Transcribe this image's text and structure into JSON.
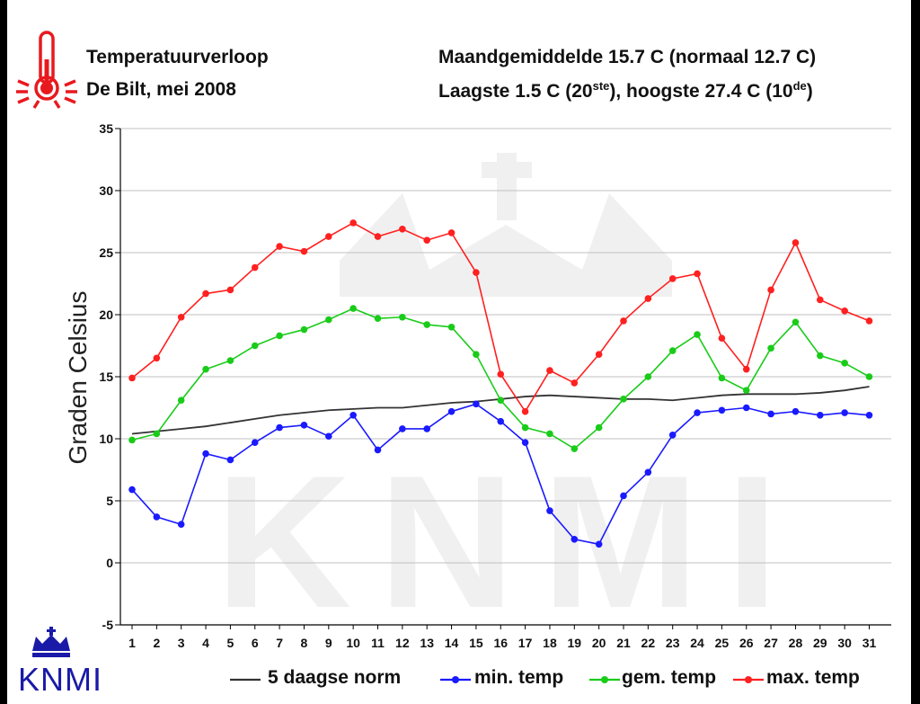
{
  "header": {
    "title": "Temperatuurverloop",
    "location": "De Bilt, mei 2008",
    "monthly_mean": "Maandgemiddelde 15.7  C (normaal 12.7  C)",
    "lowest_prefix": "Laagste 1.5  C (20",
    "lowest_sup": "ste",
    "highest_mid": "), hoogste 27.4  C (10",
    "highest_sup": "de",
    "highest_suffix": ")"
  },
  "logo": {
    "text": "KNMI",
    "icon": "thermometer-icon",
    "crown_icon": "crown-icon"
  },
  "colors": {
    "norm": "#333333",
    "min": "#1a1aff",
    "mean": "#19cc19",
    "max": "#ff2020",
    "grid": "#c0c0c0",
    "logo_red": "#e8191e",
    "logo_blue": "#1a1aa8"
  },
  "chart_data": {
    "type": "line",
    "ylabel": "Graden Celsius",
    "xlabel": "",
    "ylim": [
      -5,
      35
    ],
    "yticks": [
      -5,
      0,
      5,
      10,
      15,
      20,
      25,
      30,
      35
    ],
    "grid": true,
    "legend_position": "bottom",
    "x": [
      1,
      2,
      3,
      4,
      5,
      6,
      7,
      8,
      9,
      10,
      11,
      12,
      13,
      14,
      15,
      16,
      17,
      18,
      19,
      20,
      21,
      22,
      23,
      24,
      25,
      26,
      27,
      28,
      29,
      30,
      31
    ],
    "series": [
      {
        "name": "5 daagse norm",
        "key": "norm",
        "markers": false,
        "values": [
          10.4,
          10.6,
          10.8,
          11.0,
          11.3,
          11.6,
          11.9,
          12.1,
          12.3,
          12.4,
          12.5,
          12.5,
          12.7,
          12.9,
          13.0,
          13.2,
          13.4,
          13.5,
          13.4,
          13.3,
          13.2,
          13.2,
          13.1,
          13.3,
          13.5,
          13.6,
          13.6,
          13.6,
          13.7,
          13.9,
          14.2
        ]
      },
      {
        "name": "min. temp",
        "key": "min",
        "markers": true,
        "values": [
          5.9,
          3.7,
          3.1,
          8.8,
          8.3,
          9.7,
          10.9,
          11.1,
          10.2,
          11.9,
          9.1,
          10.8,
          10.8,
          12.2,
          12.8,
          11.4,
          9.7,
          4.2,
          1.9,
          1.5,
          5.4,
          7.3,
          10.3,
          12.1,
          12.3,
          12.5,
          12.0,
          12.2,
          11.9,
          12.1,
          11.9
        ]
      },
      {
        "name": "gem. temp",
        "key": "mean",
        "markers": true,
        "values": [
          9.9,
          10.4,
          13.1,
          15.6,
          16.3,
          17.5,
          18.3,
          18.8,
          19.6,
          20.5,
          19.7,
          19.8,
          19.2,
          19.0,
          16.8,
          13.1,
          10.9,
          10.4,
          9.2,
          10.9,
          13.2,
          15.0,
          17.1,
          18.4,
          14.9,
          13.9,
          17.3,
          19.4,
          16.7,
          16.1,
          15.0
        ]
      },
      {
        "name": "max. temp",
        "key": "max",
        "markers": true,
        "values": [
          14.9,
          16.5,
          19.8,
          21.7,
          22.0,
          23.8,
          25.5,
          25.1,
          26.3,
          27.4,
          26.3,
          26.9,
          26.0,
          26.6,
          23.4,
          15.2,
          12.2,
          15.5,
          14.5,
          16.8,
          19.5,
          21.3,
          22.9,
          23.3,
          18.1,
          15.6,
          22.0,
          25.8,
          21.2,
          20.3,
          19.5
        ]
      }
    ]
  }
}
